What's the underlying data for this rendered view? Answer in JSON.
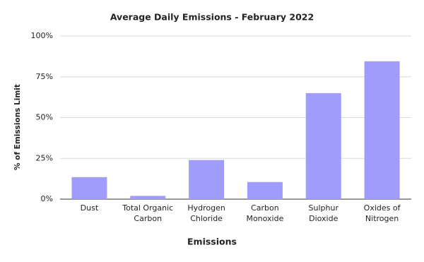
{
  "chart_data": {
    "type": "bar",
    "title": "Average Daily Emissions - February 2022",
    "x_label": "Emissions",
    "y_label": "% of Emissions Limit",
    "categories": [
      "Dust",
      "Total Organic Carbon",
      "Hydrogen Chloride",
      "Carbon Monoxide",
      "Sulphur Dioxide",
      "Oxides of Nitrogen"
    ],
    "values": [
      13.5,
      2,
      24,
      10.5,
      65,
      84.5
    ],
    "color": "#a09cfb",
    "ylim": [
      0,
      100
    ],
    "yticks": [
      {
        "value": 0,
        "label": "0%"
      },
      {
        "value": 25,
        "label": "25%"
      },
      {
        "value": 50,
        "label": "50%"
      },
      {
        "value": 75,
        "label": "75%"
      },
      {
        "value": 100,
        "label": "100%"
      }
    ],
    "grid": true
  }
}
